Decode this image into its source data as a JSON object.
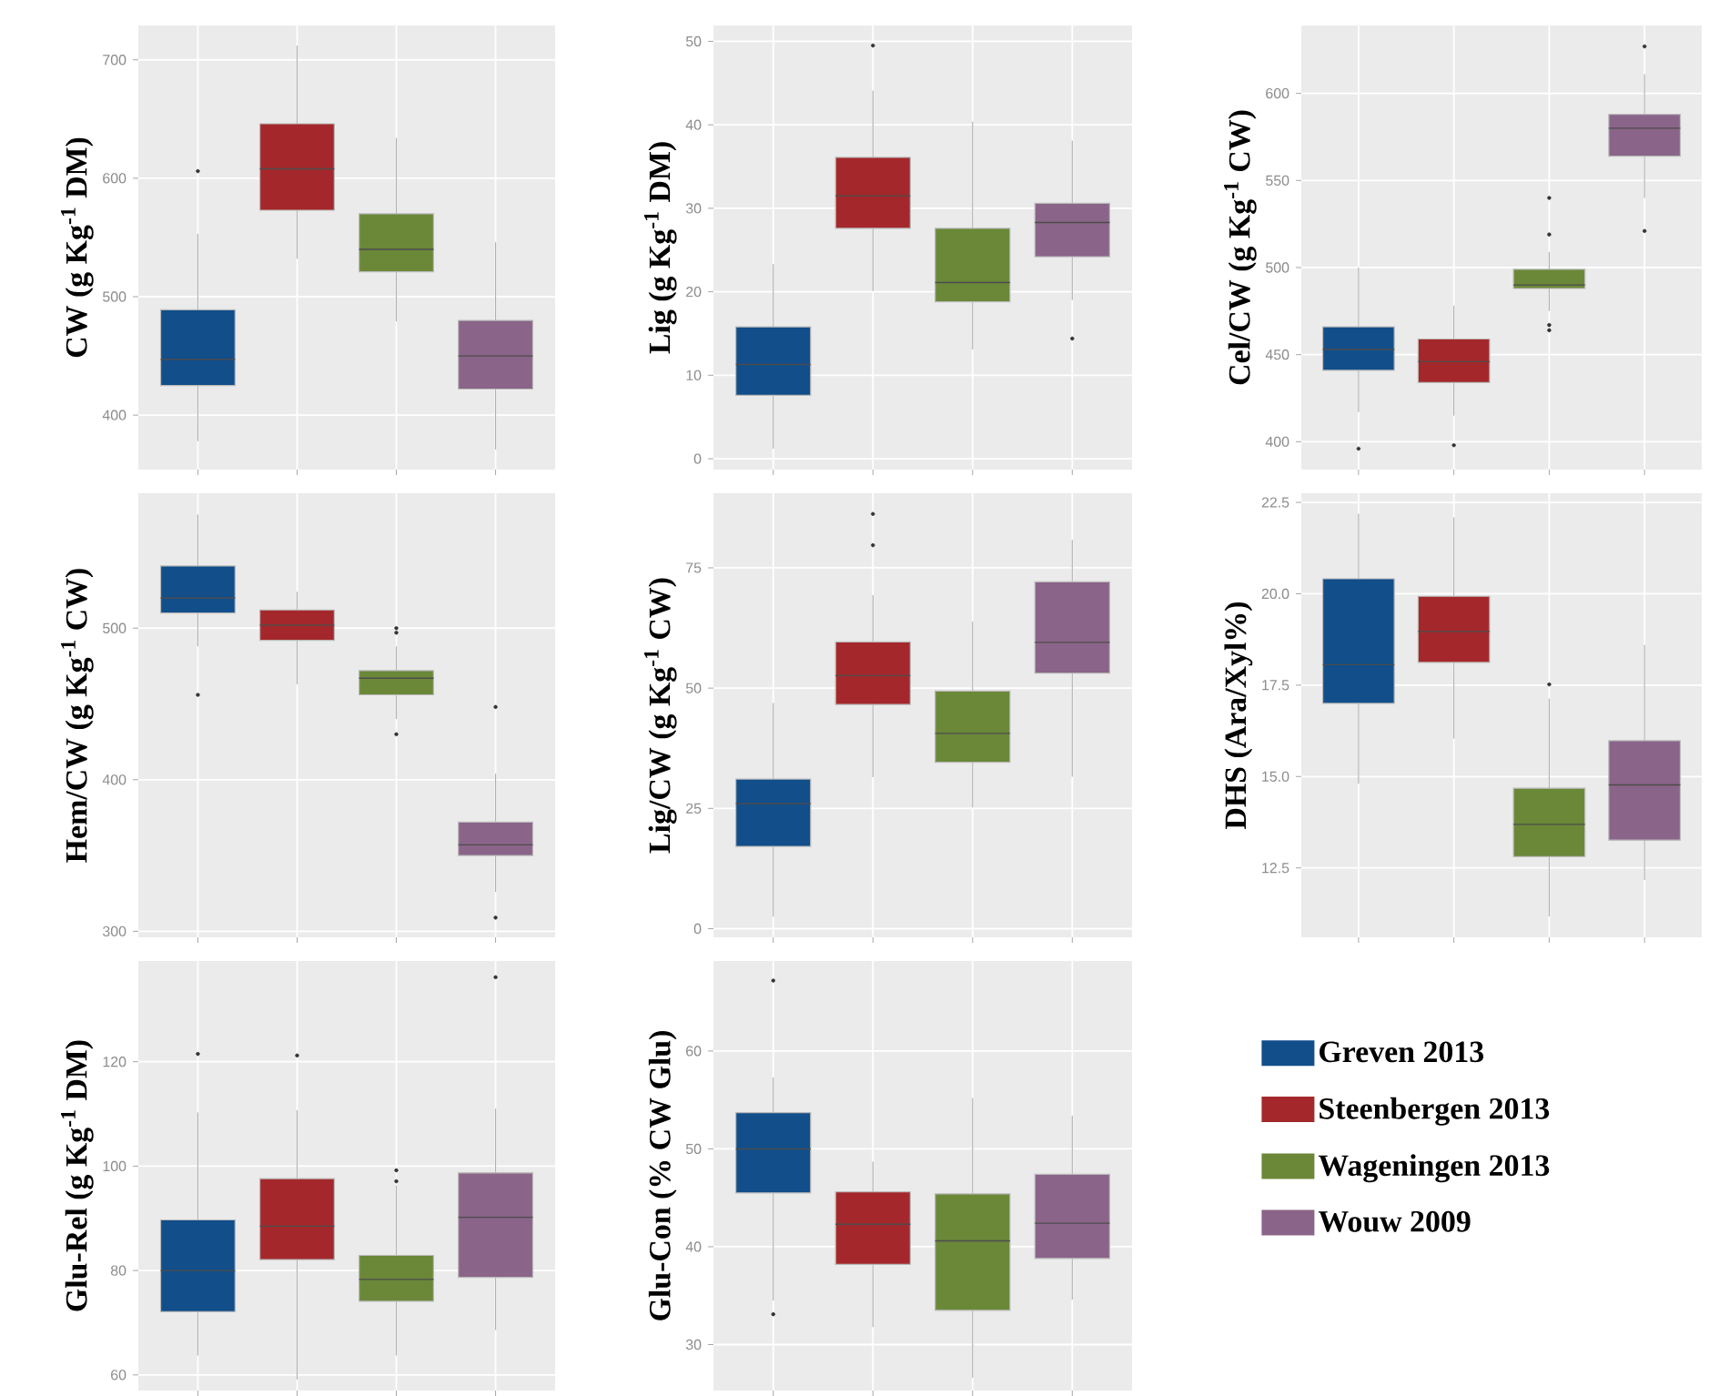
{
  "chart_data": [
    {
      "type": "box",
      "ylabel": "CW (g Kg$^{-1}$ DM)",
      "categories": [
        null,
        null,
        null,
        null
      ],
      "colors": [
        "#114e8a",
        "#a4282b",
        "#6a8838",
        "#8a6489"
      ],
      "ylim": [
        354,
        729
      ],
      "yticks": [
        400,
        500,
        600,
        700
      ],
      "grid": true,
      "boxes": [
        {
          "low": 378,
          "q1": 425,
          "median": 447,
          "q3": 489,
          "high": 553,
          "outliers": [
            606
          ]
        },
        {
          "low": 532,
          "q1": 573,
          "median": 608,
          "q3": 646,
          "high": 712
        },
        {
          "low": 479,
          "q1": 521,
          "median": 540,
          "q3": 570,
          "high": 634
        },
        {
          "low": 371,
          "q1": 422,
          "median": 450,
          "q3": 480,
          "high": 546
        }
      ]
    },
    {
      "type": "box",
      "ylabel": "Lig (g Kg$^{-1}$ DM)",
      "categories": [
        null,
        null,
        null,
        null
      ],
      "colors": [
        "#114e8a",
        "#a4282b",
        "#6a8838",
        "#8a6489"
      ],
      "ylim": [
        -1.3,
        51.9
      ],
      "yticks": [
        0,
        10,
        20,
        30,
        40,
        50
      ],
      "grid": true,
      "boxes": [
        {
          "low": 1.2,
          "q1": 7.6,
          "median": 11.3,
          "q3": 15.8,
          "high": 23.3
        },
        {
          "low": 20.1,
          "q1": 27.6,
          "median": 31.5,
          "q3": 36.1,
          "high": 44.1,
          "outliers": [
            49.5
          ]
        },
        {
          "low": 13.1,
          "q1": 18.8,
          "median": 21.1,
          "q3": 27.6,
          "high": 40.4
        },
        {
          "low": 19.0,
          "q1": 24.2,
          "median": 28.3,
          "q3": 30.6,
          "high": 38.1,
          "outliers": [
            14.4
          ]
        }
      ]
    },
    {
      "type": "box",
      "ylabel": "Cel/CW (g Kg$^{-1}$ CW)",
      "categories": [
        null,
        null,
        null,
        null
      ],
      "colors": [
        "#114e8a",
        "#a4282b",
        "#6a8838",
        "#8a6489"
      ],
      "ylim": [
        384,
        639
      ],
      "yticks": [
        400,
        450,
        500,
        550,
        600
      ],
      "grid": true,
      "boxes": [
        {
          "low": 417,
          "q1": 441,
          "median": 453,
          "q3": 466,
          "high": 500,
          "outliers": [
            396
          ]
        },
        {
          "low": 415,
          "q1": 434,
          "median": 446,
          "q3": 459,
          "high": 478,
          "outliers": [
            398
          ]
        },
        {
          "low": 475,
          "q1": 488,
          "median": 490,
          "q3": 499,
          "high": 509,
          "outliers": [
            540,
            519,
            467,
            464
          ]
        },
        {
          "low": 540,
          "q1": 564,
          "median": 580,
          "q3": 588,
          "high": 611,
          "outliers": [
            627,
            521
          ]
        }
      ]
    },
    {
      "type": "box",
      "ylabel": "Hem/CW (g Kg$^{-1}$ CW)",
      "categories": [
        null,
        null,
        null,
        null
      ],
      "colors": [
        "#114e8a",
        "#a4282b",
        "#6a8838",
        "#8a6489"
      ],
      "ylim": [
        296,
        589
      ],
      "yticks": [
        300,
        400,
        500
      ],
      "grid": true,
      "boxes": [
        {
          "low": 488,
          "q1": 510,
          "median": 520,
          "q3": 541,
          "high": 575,
          "outliers": [
            456
          ]
        },
        {
          "low": 463,
          "q1": 492,
          "median": 502,
          "q3": 512,
          "high": 524
        },
        {
          "low": 440,
          "q1": 456,
          "median": 467,
          "q3": 472,
          "high": 488,
          "outliers": [
            500,
            497,
            430
          ]
        },
        {
          "low": 326,
          "q1": 350,
          "median": 357,
          "q3": 372,
          "high": 404,
          "outliers": [
            448,
            309
          ]
        }
      ]
    },
    {
      "type": "box",
      "ylabel": "Lig/CW (g Kg$^{-1}$ CW)",
      "categories": [
        null,
        null,
        null,
        null
      ],
      "colors": [
        "#114e8a",
        "#a4282b",
        "#6a8838",
        "#8a6489"
      ],
      "ylim": [
        -1.8,
        90.5
      ],
      "yticks": [
        0,
        25,
        50,
        75
      ],
      "grid": true,
      "boxes": [
        {
          "low": 2.5,
          "q1": 17.1,
          "median": 26.0,
          "q3": 31.1,
          "high": 46.9
        },
        {
          "low": 31.5,
          "q1": 46.6,
          "median": 52.6,
          "q3": 59.6,
          "high": 69.3,
          "outliers": [
            86.2,
            79.7
          ]
        },
        {
          "low": 25.2,
          "q1": 34.6,
          "median": 40.6,
          "q3": 49.4,
          "high": 63.9
        },
        {
          "low": 31.6,
          "q1": 53.1,
          "median": 59.5,
          "q3": 72.1,
          "high": 80.8
        }
      ]
    },
    {
      "type": "box",
      "ylabel": "DHS (Ara/Xyl%)",
      "categories": [
        null,
        null,
        null,
        null
      ],
      "colors": [
        "#114e8a",
        "#a4282b",
        "#6a8838",
        "#8a6489"
      ],
      "ylim": [
        10.6,
        22.75
      ],
      "yticks": [
        {
          "value": 12.5,
          "label": "12.5"
        },
        {
          "value": 15,
          "label": "15.0"
        },
        {
          "value": 17.5,
          "label": "17.5"
        },
        {
          "value": 20,
          "label": "20.0"
        },
        {
          "value": 22.5,
          "label": "22.5"
        }
      ],
      "grid": true,
      "boxes": [
        {
          "low": 14.8,
          "q1": 17.0,
          "median": 18.06,
          "q3": 20.41,
          "high": 22.19
        },
        {
          "low": 16.04,
          "q1": 18.12,
          "median": 18.97,
          "q3": 19.93,
          "high": 22.09
        },
        {
          "low": 11.17,
          "q1": 12.81,
          "median": 13.69,
          "q3": 14.68,
          "high": 17.13,
          "outliers": [
            17.52
          ]
        },
        {
          "low": 12.17,
          "q1": 13.26,
          "median": 14.77,
          "q3": 15.98,
          "high": 18.6
        }
      ]
    },
    {
      "type": "box",
      "ylabel": "Glu-Rel (g Kg$^{-1}$ DM)",
      "categories": [
        null,
        null,
        null,
        null
      ],
      "colors": [
        "#114e8a",
        "#a4282b",
        "#6a8838",
        "#8a6489"
      ],
      "ylim": [
        57,
        139.3
      ],
      "yticks": [
        60,
        80,
        100,
        120
      ],
      "grid": true,
      "boxes": [
        {
          "low": 63.7,
          "q1": 72.1,
          "median": 80,
          "q3": 89.7,
          "high": 110.3,
          "outliers": [
            121.5
          ]
        },
        {
          "low": 59.1,
          "q1": 82.1,
          "median": 88.5,
          "q3": 97.6,
          "high": 110.7,
          "outliers": [
            121.2
          ]
        },
        {
          "low": 63.7,
          "q1": 74.1,
          "median": 78.3,
          "q3": 82.9,
          "high": 96.3,
          "outliers": [
            99.2,
            97.1
          ]
        },
        {
          "low": 68.6,
          "q1": 78.7,
          "median": 90.2,
          "q3": 98.7,
          "high": 111,
          "outliers": [
            136.2
          ]
        }
      ]
    },
    {
      "type": "box",
      "ylabel": "Glu-Con (% CW Glu)",
      "categories": [
        null,
        null,
        null,
        null
      ],
      "colors": [
        "#114e8a",
        "#a4282b",
        "#6a8838",
        "#8a6489"
      ],
      "ylim": [
        25.3,
        69.2
      ],
      "yticks": [
        30,
        40,
        50,
        60
      ],
      "grid": true,
      "boxes": [
        {
          "low": 34.5,
          "q1": 45.5,
          "median": 50,
          "q3": 53.7,
          "high": 57.3,
          "outliers": [
            67.2,
            33.1
          ]
        },
        {
          "low": 31.8,
          "q1": 38.2,
          "median": 42.3,
          "q3": 45.6,
          "high": 48.7
        },
        {
          "low": 26.6,
          "q1": 33.5,
          "median": 40.6,
          "q3": 45.4,
          "high": 55.2
        },
        {
          "low": 34.6,
          "q1": 38.8,
          "median": 42.4,
          "q3": 47.4,
          "high": 53.4
        }
      ]
    },
    {
      "type": "other",
      "categories": [
        "Greven 2013",
        "Steenbergen 2013",
        "Wageningen 2013",
        "Wouw 2009"
      ],
      "colors": [
        "#114e8a",
        "#a4282b",
        "#6a8838",
        "#8a6489"
      ]
    }
  ]
}
